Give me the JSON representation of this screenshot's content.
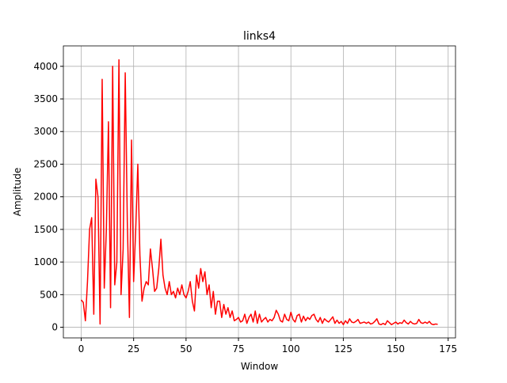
{
  "chart_data": {
    "type": "line",
    "title": "links4",
    "x_label": "Window",
    "y_label": "Amplitude",
    "x": [
      0,
      1,
      2,
      3,
      4,
      5,
      6,
      7,
      8,
      9,
      10,
      11,
      12,
      13,
      14,
      15,
      16,
      17,
      18,
      19,
      20,
      21,
      22,
      23,
      24,
      25,
      26,
      27,
      28,
      29,
      30,
      31,
      32,
      33,
      34,
      35,
      36,
      37,
      38,
      39,
      40,
      41,
      42,
      43,
      44,
      45,
      46,
      47,
      48,
      49,
      50,
      51,
      52,
      53,
      54,
      55,
      56,
      57,
      58,
      59,
      60,
      61,
      62,
      63,
      64,
      65,
      66,
      67,
      68,
      69,
      70,
      71,
      72,
      73,
      74,
      75,
      76,
      77,
      78,
      79,
      80,
      81,
      82,
      83,
      84,
      85,
      86,
      87,
      88,
      89,
      90,
      91,
      92,
      93,
      94,
      95,
      96,
      97,
      98,
      99,
      100,
      101,
      102,
      103,
      104,
      105,
      106,
      107,
      108,
      109,
      110,
      111,
      112,
      113,
      114,
      115,
      116,
      117,
      118,
      119,
      120,
      121,
      122,
      123,
      124,
      125,
      126,
      127,
      128,
      129,
      130,
      131,
      132,
      133,
      134,
      135,
      136,
      137,
      138,
      139,
      140,
      141,
      142,
      143,
      144,
      145,
      146,
      147,
      148,
      149,
      150,
      151,
      152,
      153,
      154,
      155,
      156,
      157,
      158,
      159,
      160,
      161,
      162,
      163,
      164,
      165,
      166,
      167,
      168,
      169,
      170
    ],
    "series": [
      {
        "name": "links4",
        "color": "#ff0000",
        "values": [
          420,
          380,
          100,
          700,
          1500,
          1680,
          200,
          2270,
          2000,
          50,
          3800,
          600,
          1500,
          3150,
          300,
          4000,
          650,
          1000,
          4100,
          500,
          1200,
          3900,
          1600,
          150,
          2870,
          700,
          1500,
          2500,
          1100,
          400,
          600,
          700,
          650,
          1200,
          900,
          550,
          600,
          900,
          1350,
          800,
          600,
          500,
          700,
          500,
          550,
          450,
          600,
          500,
          650,
          500,
          450,
          550,
          700,
          400,
          250,
          800,
          600,
          900,
          700,
          850,
          500,
          650,
          300,
          550,
          200,
          400,
          400,
          150,
          350,
          200,
          300,
          150,
          250,
          100,
          120,
          150,
          80,
          100,
          200,
          60,
          150,
          200,
          80,
          250,
          60,
          200,
          80,
          120,
          150,
          80,
          120,
          100,
          150,
          260,
          200,
          100,
          80,
          200,
          120,
          100,
          230,
          120,
          80,
          180,
          200,
          80,
          170,
          100,
          150,
          120,
          180,
          200,
          120,
          80,
          150,
          60,
          130,
          100,
          80,
          120,
          160,
          60,
          110,
          60,
          90,
          40,
          100,
          60,
          130,
          80,
          70,
          90,
          120,
          60,
          70,
          80,
          60,
          80,
          50,
          60,
          90,
          130,
          50,
          40,
          60,
          40,
          100,
          70,
          40,
          60,
          80,
          50,
          70,
          60,
          110,
          70,
          50,
          90,
          60,
          50,
          60,
          120,
          70,
          60,
          80,
          60,
          90,
          50,
          40,
          50,
          45
        ]
      }
    ],
    "xlim": [
      -8.5,
      178.5
    ],
    "ylim": [
      -163,
      4313
    ],
    "xticks": [
      0,
      25,
      50,
      75,
      100,
      125,
      150,
      175
    ],
    "yticks": [
      0,
      500,
      1000,
      1500,
      2000,
      2500,
      3000,
      3500,
      4000
    ],
    "grid": true
  }
}
